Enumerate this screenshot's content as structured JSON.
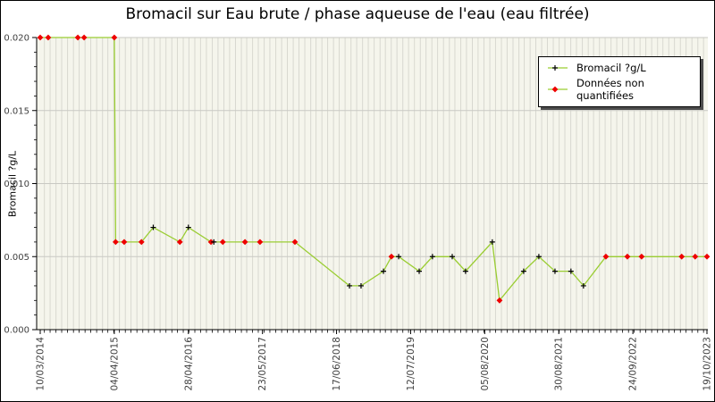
{
  "chart_data": {
    "type": "line",
    "title": "Bromacil sur Eau brute / phase aqueuse de l'eau (eau filtrée)",
    "ylabel": "Bromacil ?g/L",
    "series_name": "Bromacil ?g/L",
    "ylim": [
      0,
      0.02
    ],
    "y_tick_values": [
      0,
      0.005,
      0.01,
      0.015,
      0.02
    ],
    "y_tick_labels": [
      "0.000",
      "0.005",
      "0.010",
      "0.015",
      "0.020"
    ],
    "y_minor_step": 0.001,
    "x_range": [
      "10/03/2014",
      "19/10/2023"
    ],
    "x_major_ticks": [
      "10/03/2014",
      "04/04/2015",
      "28/04/2016",
      "23/05/2017",
      "17/06/2018",
      "12/07/2019",
      "05/08/2020",
      "30/08/2021",
      "24/09/2022",
      "19/10/2023"
    ],
    "x_minor_grid": "monthly",
    "grid": true,
    "legend_position": "top-right",
    "legend": [
      {
        "label": "Bromacil ?g/L",
        "marker": "plus"
      },
      {
        "label": "Données non quantifiées",
        "marker": "diamond"
      }
    ],
    "points": [
      {
        "date": "10/03/2014",
        "value": 0.02,
        "quantified": false
      },
      {
        "date": "21/04/2014",
        "value": 0.02,
        "quantified": false
      },
      {
        "date": "24/09/2014",
        "value": 0.02,
        "quantified": false
      },
      {
        "date": "27/10/2014",
        "value": 0.02,
        "quantified": false
      },
      {
        "date": "04/04/2015",
        "value": 0.02,
        "quantified": false
      },
      {
        "date": "11/04/2015",
        "value": 0.006,
        "quantified": false
      },
      {
        "date": "26/05/2015",
        "value": 0.006,
        "quantified": false
      },
      {
        "date": "25/08/2015",
        "value": 0.006,
        "quantified": false
      },
      {
        "date": "26/10/2015",
        "value": 0.007,
        "quantified": true
      },
      {
        "date": "14/03/2016",
        "value": 0.006,
        "quantified": false
      },
      {
        "date": "28/04/2016",
        "value": 0.007,
        "quantified": true
      },
      {
        "date": "25/08/2016",
        "value": 0.006,
        "quantified": false
      },
      {
        "date": "09/09/2016",
        "value": 0.006,
        "quantified": true
      },
      {
        "date": "26/10/2016",
        "value": 0.006,
        "quantified": false
      },
      {
        "date": "20/02/2017",
        "value": 0.006,
        "quantified": false
      },
      {
        "date": "10/05/2017",
        "value": 0.006,
        "quantified": false
      },
      {
        "date": "10/11/2017",
        "value": 0.006,
        "quantified": false
      },
      {
        "date": "24/08/2018",
        "value": 0.003,
        "quantified": true
      },
      {
        "date": "24/10/2018",
        "value": 0.003,
        "quantified": true
      },
      {
        "date": "19/02/2019",
        "value": 0.004,
        "quantified": true
      },
      {
        "date": "02/04/2019",
        "value": 0.005,
        "quantified": false
      },
      {
        "date": "10/05/2019",
        "value": 0.005,
        "quantified": true
      },
      {
        "date": "26/08/2019",
        "value": 0.004,
        "quantified": true
      },
      {
        "date": "04/11/2019",
        "value": 0.005,
        "quantified": true
      },
      {
        "date": "16/02/2020",
        "value": 0.005,
        "quantified": true
      },
      {
        "date": "26/04/2020",
        "value": 0.004,
        "quantified": true
      },
      {
        "date": "14/09/2020",
        "value": 0.006,
        "quantified": true
      },
      {
        "date": "22/10/2020",
        "value": 0.002,
        "quantified": false
      },
      {
        "date": "26/02/2021",
        "value": 0.004,
        "quantified": true
      },
      {
        "date": "17/05/2021",
        "value": 0.005,
        "quantified": true
      },
      {
        "date": "10/08/2021",
        "value": 0.004,
        "quantified": true
      },
      {
        "date": "02/11/2021",
        "value": 0.004,
        "quantified": true
      },
      {
        "date": "07/01/2022",
        "value": 0.003,
        "quantified": true
      },
      {
        "date": "05/05/2022",
        "value": 0.005,
        "quantified": false
      },
      {
        "date": "26/08/2022",
        "value": 0.005,
        "quantified": false
      },
      {
        "date": "09/11/2022",
        "value": 0.005,
        "quantified": false
      },
      {
        "date": "08/06/2023",
        "value": 0.005,
        "quantified": false
      },
      {
        "date": "18/08/2023",
        "value": 0.005,
        "quantified": false
      },
      {
        "date": "19/10/2023",
        "value": 0.005,
        "quantified": false
      }
    ],
    "colors": {
      "line": "#9acd32",
      "quantified_marker": "#000000",
      "non_quantified_marker": "#ee0000",
      "plot_bg": "#f5f5ec",
      "grid_vertical": "#d8d8d0",
      "grid_horizontal": "#c9c9c3",
      "axis": "#000000",
      "tick_label": "#404040",
      "figure_bg": "#ffffff"
    }
  }
}
